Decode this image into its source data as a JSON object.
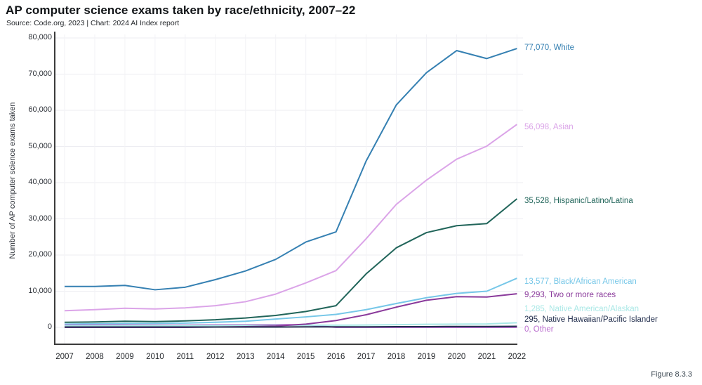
{
  "header": {
    "title": "AP computer science exams taken by race/ethnicity, 2007–22",
    "subtitle": "Source: Code.org, 2023 | Chart: 2024 AI Index report"
  },
  "figure_caption": "Figure 8.3.3",
  "y_axis": {
    "title": "Number of AP computer science exams taken",
    "tick_values": [
      0,
      10000,
      20000,
      30000,
      40000,
      50000,
      60000,
      70000,
      80000
    ],
    "tick_labels": [
      "0",
      "10,000",
      "20,000",
      "30,000",
      "40,000",
      "50,000",
      "60,000",
      "70,000",
      "80,000"
    ]
  },
  "x_axis": {
    "tick_labels": [
      "2007",
      "2008",
      "2009",
      "2010",
      "2011",
      "2012",
      "2013",
      "2014",
      "2015",
      "2016",
      "2017",
      "2018",
      "2019",
      "2020",
      "2021",
      "2022"
    ]
  },
  "chart_data": {
    "type": "line",
    "title": "AP computer science exams taken by race/ethnicity, 2007–22",
    "x": [
      2007,
      2008,
      2009,
      2010,
      2011,
      2012,
      2013,
      2014,
      2015,
      2016,
      2017,
      2018,
      2019,
      2020,
      2021,
      2022
    ],
    "xlabel": "",
    "ylabel": "Number of AP computer science exams taken",
    "ylim": [
      0,
      80000
    ],
    "grid": true,
    "legend_position": "right-end-labels",
    "series": [
      {
        "name": "White",
        "end_label": "77,070, White",
        "color": "#3580b2",
        "values": [
          11300,
          11300,
          11600,
          10400,
          11100,
          13200,
          15600,
          18800,
          23600,
          26400,
          46000,
          61500,
          70400,
          76500,
          74300,
          77070
        ]
      },
      {
        "name": "Asian",
        "end_label": "56,098, Asian",
        "color": "#dba4e8",
        "values": [
          4600,
          4900,
          5300,
          5100,
          5400,
          6000,
          7100,
          9200,
          12300,
          15700,
          24500,
          34000,
          40700,
          46500,
          50100,
          56098
        ]
      },
      {
        "name": "Hispanic/Latino/Latina",
        "end_label": "35,528, Hispanic/Latino/Latina",
        "color": "#21655a",
        "values": [
          1400,
          1500,
          1700,
          1600,
          1800,
          2100,
          2600,
          3300,
          4400,
          6000,
          14800,
          22000,
          26200,
          28100,
          28700,
          35528
        ]
      },
      {
        "name": "Black/African American",
        "end_label": "13,577, Black/African American",
        "color": "#76c7e8",
        "values": [
          900,
          1000,
          1100,
          1100,
          1200,
          1400,
          1700,
          2300,
          2900,
          3600,
          4900,
          6600,
          8200,
          9400,
          10000,
          13577
        ]
      },
      {
        "name": "Two or more races",
        "end_label": "9,293, Two or more races",
        "color": "#8a3a9b",
        "values": [
          0,
          0,
          0,
          0,
          0,
          100,
          200,
          400,
          900,
          1900,
          3500,
          5600,
          7500,
          8500,
          8400,
          9293
        ]
      },
      {
        "name": "Native American/Alaskan",
        "end_label": "1,285, Native American/Alaskan",
        "color": "#a9e8e6",
        "values": [
          400,
          400,
          450,
          450,
          500,
          500,
          550,
          550,
          600,
          600,
          650,
          750,
          850,
          900,
          950,
          1285
        ]
      },
      {
        "name": "Native Hawaiian/Pacific Islander",
        "end_label": "295, Native Hawaiian/Pacific Islander",
        "color": "#232f4e",
        "values": [
          100,
          100,
          100,
          100,
          100,
          100,
          100,
          100,
          150,
          150,
          150,
          200,
          200,
          250,
          250,
          295
        ]
      },
      {
        "name": "Other",
        "end_label": "0, Other",
        "color": "#bb6fcf",
        "values": [
          600,
          620,
          680,
          620,
          660,
          700,
          720,
          760,
          700,
          0,
          0,
          0,
          0,
          0,
          0,
          0
        ]
      }
    ]
  }
}
